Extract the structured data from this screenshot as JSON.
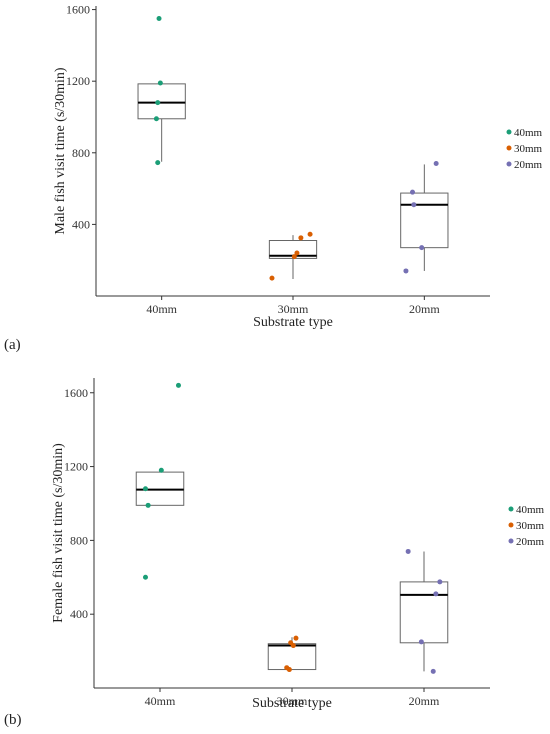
{
  "chart_data": [
    {
      "type": "box",
      "panel_label": "(a)",
      "xlabel": "Substrate type",
      "ylabel": "Male fish visit time (s/30min)",
      "categories": [
        "40mm",
        "30mm",
        "20mm"
      ],
      "yticks": [
        400,
        800,
        1200,
        1600
      ],
      "ylim": [
        0,
        1620
      ],
      "legend_position": "right",
      "legend": [
        "40mm",
        "30mm",
        "20mm"
      ],
      "colors": [
        "#1b9e77",
        "#d95f02",
        "#7570b3"
      ],
      "boxes": [
        {
          "category": "40mm",
          "lower_whisker": 750,
          "q1": 990,
          "median": 1080,
          "q3": 1185,
          "upper_whisker": 1185
        },
        {
          "category": "30mm",
          "lower_whisker": 95,
          "q1": 210,
          "median": 225,
          "q3": 310,
          "upper_whisker": 340
        },
        {
          "category": "20mm",
          "lower_whisker": 140,
          "q1": 270,
          "median": 510,
          "q3": 575,
          "upper_whisker": 735
        }
      ],
      "points": [
        {
          "category": "40mm",
          "y": 1550,
          "jitter": -0.02
        },
        {
          "category": "40mm",
          "y": 1190,
          "jitter": -0.01
        },
        {
          "category": "40mm",
          "y": 1080,
          "jitter": -0.03
        },
        {
          "category": "40mm",
          "y": 990,
          "jitter": -0.04
        },
        {
          "category": "40mm",
          "y": 745,
          "jitter": -0.03
        },
        {
          "category": "30mm",
          "y": 345,
          "jitter": 0.13
        },
        {
          "category": "30mm",
          "y": 325,
          "jitter": 0.06
        },
        {
          "category": "30mm",
          "y": 240,
          "jitter": 0.03
        },
        {
          "category": "30mm",
          "y": 220,
          "jitter": 0.01
        },
        {
          "category": "30mm",
          "y": 100,
          "jitter": -0.16
        },
        {
          "category": "20mm",
          "y": 740,
          "jitter": 0.09
        },
        {
          "category": "20mm",
          "y": 580,
          "jitter": -0.09
        },
        {
          "category": "20mm",
          "y": 510,
          "jitter": -0.08
        },
        {
          "category": "20mm",
          "y": 270,
          "jitter": -0.02
        },
        {
          "category": "20mm",
          "y": 140,
          "jitter": -0.14
        }
      ]
    },
    {
      "type": "box",
      "panel_label": "(b)",
      "xlabel": "Substrate type",
      "ylabel": "Female fish visit time (s/30min)",
      "categories": [
        "40mm",
        "30mm",
        "20mm"
      ],
      "yticks": [
        400,
        800,
        1200,
        1600
      ],
      "ylim": [
        0,
        1680
      ],
      "legend_position": "right",
      "legend": [
        "40mm",
        "30mm",
        "20mm"
      ],
      "colors": [
        "#1b9e77",
        "#d95f02",
        "#7570b3"
      ],
      "boxes": [
        {
          "category": "40mm",
          "lower_whisker": 990,
          "q1": 990,
          "median": 1075,
          "q3": 1170,
          "upper_whisker": 1170
        },
        {
          "category": "30mm",
          "lower_whisker": 100,
          "q1": 100,
          "median": 230,
          "q3": 240,
          "upper_whisker": 275
        },
        {
          "category": "20mm",
          "lower_whisker": 90,
          "q1": 245,
          "median": 505,
          "q3": 575,
          "upper_whisker": 740
        }
      ],
      "points": [
        {
          "category": "40mm",
          "y": 1640,
          "jitter": 0.14
        },
        {
          "category": "40mm",
          "y": 1180,
          "jitter": 0.01
        },
        {
          "category": "40mm",
          "y": 1080,
          "jitter": -0.11
        },
        {
          "category": "40mm",
          "y": 990,
          "jitter": -0.09
        },
        {
          "category": "40mm",
          "y": 600,
          "jitter": -0.11
        },
        {
          "category": "30mm",
          "y": 270,
          "jitter": 0.03
        },
        {
          "category": "30mm",
          "y": 245,
          "jitter": -0.01
        },
        {
          "category": "30mm",
          "y": 230,
          "jitter": 0.01
        },
        {
          "category": "30mm",
          "y": 110,
          "jitter": -0.04
        },
        {
          "category": "30mm",
          "y": 100,
          "jitter": -0.02
        },
        {
          "category": "20mm",
          "y": 740,
          "jitter": -0.12
        },
        {
          "category": "20mm",
          "y": 575,
          "jitter": 0.12
        },
        {
          "category": "20mm",
          "y": 510,
          "jitter": 0.09
        },
        {
          "category": "20mm",
          "y": 250,
          "jitter": -0.02
        },
        {
          "category": "20mm",
          "y": 90,
          "jitter": 0.07
        }
      ]
    }
  ]
}
